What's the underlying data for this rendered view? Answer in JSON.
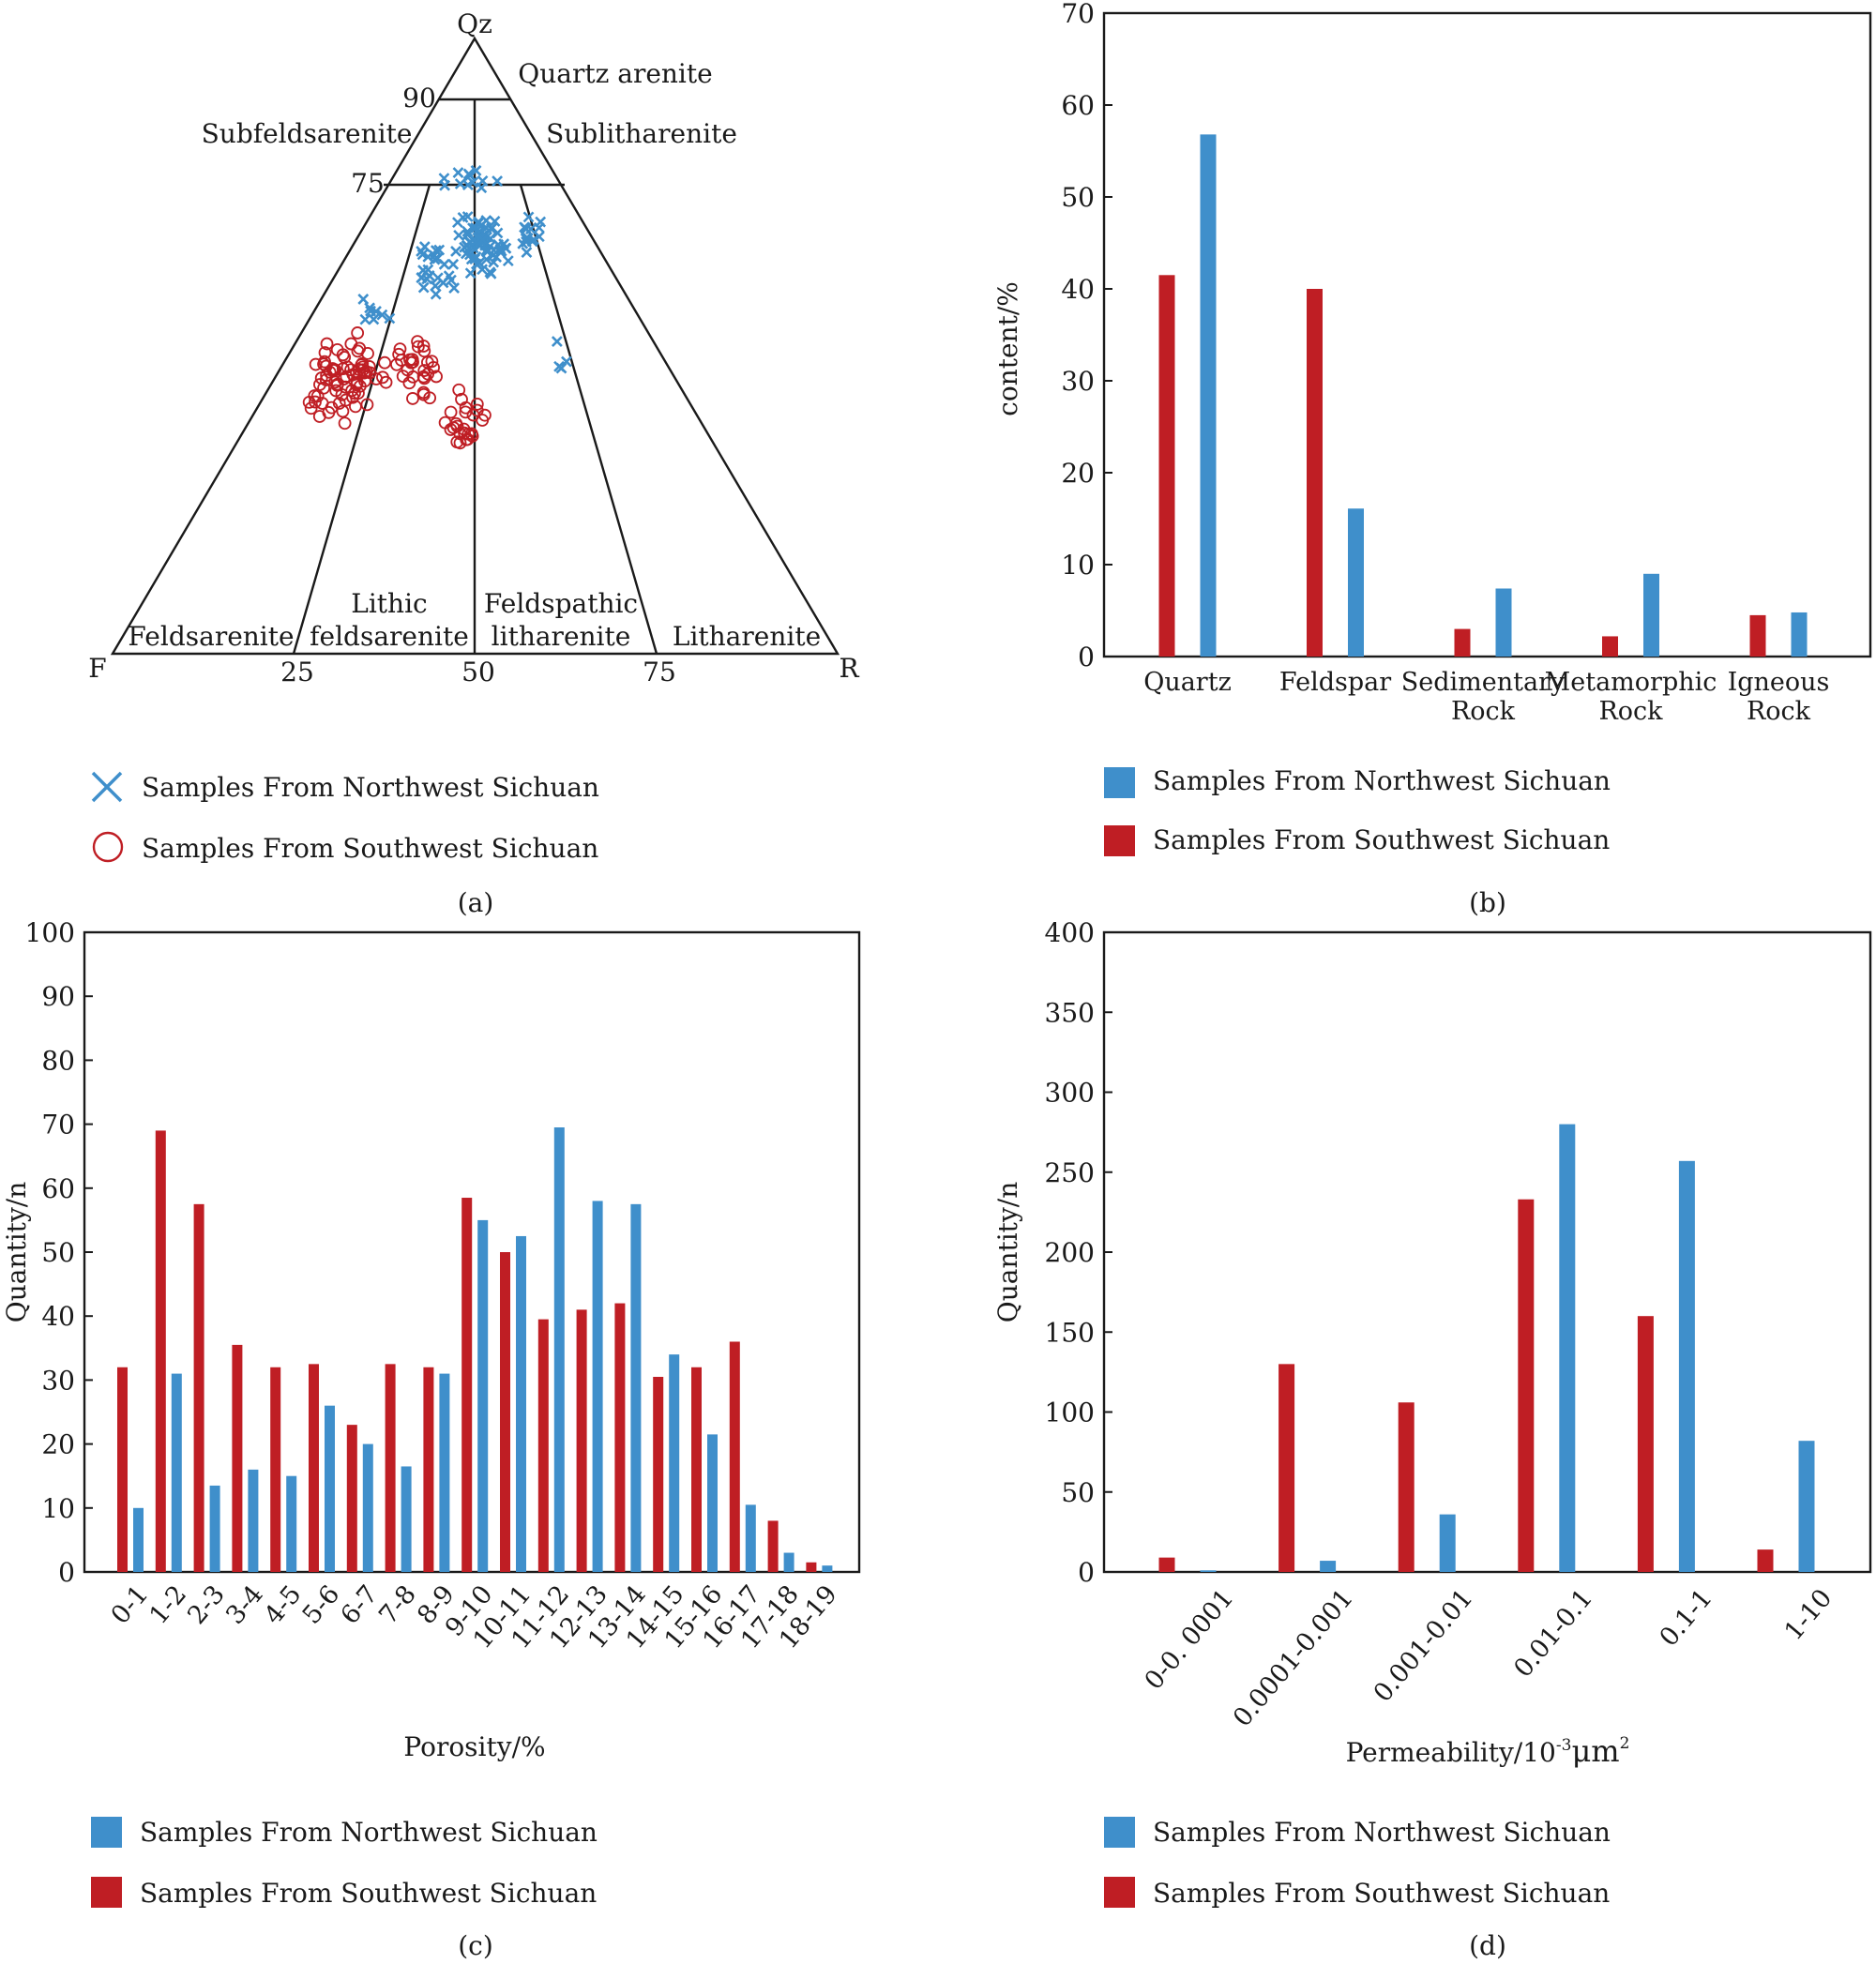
{
  "colors": {
    "northwest": "#3f8fcb",
    "southwest": "#bf1e24",
    "axis": "#1a1a1a"
  },
  "panel_a": {
    "caption": "(a)",
    "vertices": {
      "top": "Qz",
      "left": "F",
      "right": "R"
    },
    "ticks": {
      "t90": "90",
      "t75": "75",
      "b25": "25",
      "b50": "50",
      "b75": "75"
    },
    "fields": {
      "quartz_arenite": "Quartz arenite",
      "subfeldsarenite": "Subfeldsarenite",
      "sublitharenite": "Sublitharenite",
      "feldsarenite": "Feldsarenite",
      "lithic_1": "Lithic",
      "lithic_2": "feldsarenite",
      "feldspathic_1": "Feldspathic",
      "feldspathic_2": "litharenite",
      "litharenite": "Litharenite"
    },
    "legend": {
      "northwest": "Samples From Northwest Sichuan",
      "southwest": "Samples From Southwest Sichuan"
    }
  },
  "chart_data": [
    {
      "id": "b",
      "type": "bar",
      "caption": "(b)",
      "ylabel": "content/%",
      "ylim": [
        0,
        70
      ],
      "yticks": [
        0,
        10,
        20,
        30,
        40,
        50,
        60,
        70
      ],
      "categories": [
        "Quartz",
        "Feldspar",
        "Sedimentary Rock",
        "Metamorphic Rock",
        "Igneous Rock"
      ],
      "category_lines": [
        [
          "Quartz"
        ],
        [
          "Feldspar"
        ],
        [
          "Sedimentary",
          "Rock"
        ],
        [
          "Metamorphic",
          "Rock"
        ],
        [
          "Igneous",
          "Rock"
        ]
      ],
      "series": [
        {
          "name": "Samples From Southwest Sichuan",
          "values": [
            41.5,
            40,
            3,
            2.2,
            4.5
          ]
        },
        {
          "name": "Samples From Northwest Sichuan",
          "values": [
            56.8,
            16.1,
            7.4,
            9,
            4.8
          ]
        }
      ],
      "legend": [
        "Samples From Northwest Sichuan",
        "Samples From Southwest Sichuan"
      ]
    },
    {
      "id": "c",
      "type": "bar",
      "caption": "(c)",
      "xlabel": "Porosity/%",
      "ylabel": "Quantity/n",
      "ylim": [
        0,
        100
      ],
      "yticks": [
        0,
        10,
        20,
        30,
        40,
        50,
        60,
        70,
        80,
        90,
        100
      ],
      "categories": [
        "0-1",
        "1-2",
        "2-3",
        "3-4",
        "4-5",
        "5-6",
        "6-7",
        "7-8",
        "8-9",
        "9-10",
        "10-11",
        "11-12",
        "12-13",
        "13-14",
        "14-15",
        "15-16",
        "16-17",
        "17-18",
        "18-19"
      ],
      "series": [
        {
          "name": "Samples From Southwest Sichuan",
          "values": [
            32,
            69,
            57.5,
            35.5,
            32,
            32.5,
            23,
            32.5,
            32,
            58.5,
            50,
            39.5,
            41,
            42,
            30.5,
            32,
            36,
            8,
            1.5
          ]
        },
        {
          "name": "Samples From Northwest Sichuan",
          "values": [
            10,
            31,
            13.5,
            16,
            15,
            26,
            20,
            16.5,
            31,
            55,
            52.5,
            69.5,
            58,
            57.5,
            34,
            21.5,
            10.5,
            3,
            1
          ]
        }
      ],
      "legend": [
        "Samples From Northwest Sichuan",
        "Samples From Southwest Sichuan"
      ]
    },
    {
      "id": "d",
      "type": "bar",
      "caption": "(d)",
      "xlabel": "Permeability/10",
      "xlabel_sup1": "-3",
      "xlabel_unit": "μm",
      "xlabel_sup2": "2",
      "ylabel": "Quantity/n",
      "ylim": [
        0,
        400
      ],
      "yticks": [
        0,
        50,
        100,
        150,
        200,
        250,
        300,
        350,
        400
      ],
      "categories": [
        "0-0. 0001",
        "0.0001-0.001",
        "0.001-0.01",
        "0.01-0.1",
        "0.1-1",
        "1-10"
      ],
      "series": [
        {
          "name": "Samples From Southwest Sichuan",
          "values": [
            9,
            130,
            106,
            233,
            160,
            14
          ]
        },
        {
          "name": "Samples From Northwest Sichuan",
          "values": [
            1,
            7,
            36,
            280,
            257,
            82
          ]
        }
      ],
      "legend": [
        "Samples From Northwest Sichuan",
        "Samples From Southwest Sichuan"
      ]
    }
  ]
}
